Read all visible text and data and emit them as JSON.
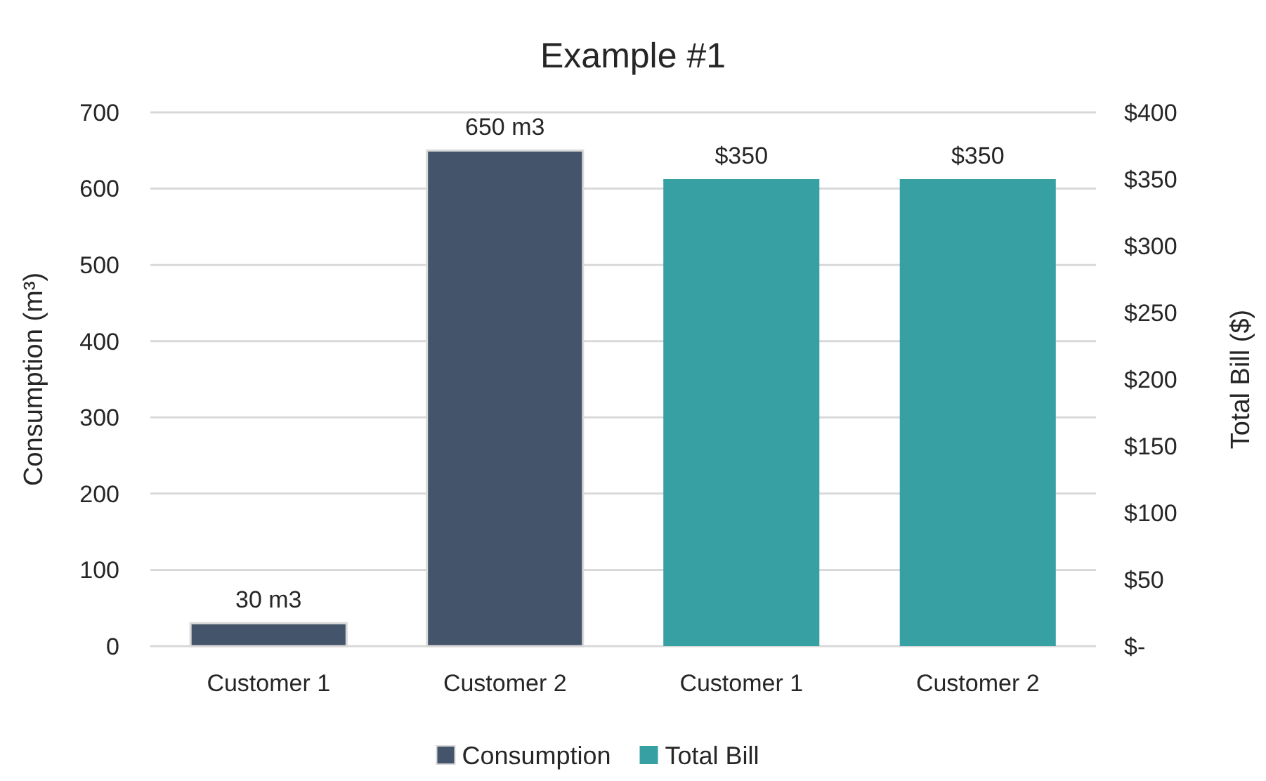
{
  "chart_data": {
    "type": "bar",
    "title": "Example #1",
    "ylabel": "Consumption (m³)",
    "y2label": "Total Bill ($)",
    "categories": [
      "Customer 1",
      "Customer 2",
      "Customer 1",
      "Customer 2"
    ],
    "series": [
      {
        "name": "Consumption",
        "color": "#44546a",
        "values": [
          30,
          650,
          null,
          null
        ],
        "value_labels": [
          "30 m3",
          "650 m3",
          null,
          null
        ]
      },
      {
        "name": "Total Bill",
        "color": "#36a0a3",
        "axis": "y2",
        "values": [
          null,
          null,
          350,
          350
        ],
        "value_labels": [
          null,
          null,
          "$350",
          "$350"
        ]
      }
    ],
    "ylim": [
      0,
      700
    ],
    "yticks": [
      0,
      100,
      200,
      300,
      400,
      500,
      600,
      700
    ],
    "y2lim": [
      0,
      400
    ],
    "y2ticks": [
      {
        "value": 0,
        "label": "$-"
      },
      {
        "value": 50,
        "label": "$50"
      },
      {
        "value": 100,
        "label": "$100"
      },
      {
        "value": 150,
        "label": "$150"
      },
      {
        "value": 200,
        "label": "$200"
      },
      {
        "value": 250,
        "label": "$250"
      },
      {
        "value": 300,
        "label": "$300"
      },
      {
        "value": 350,
        "label": "$350"
      },
      {
        "value": 400,
        "label": "$400"
      }
    ],
    "grid": "y",
    "legend": "bottom"
  }
}
